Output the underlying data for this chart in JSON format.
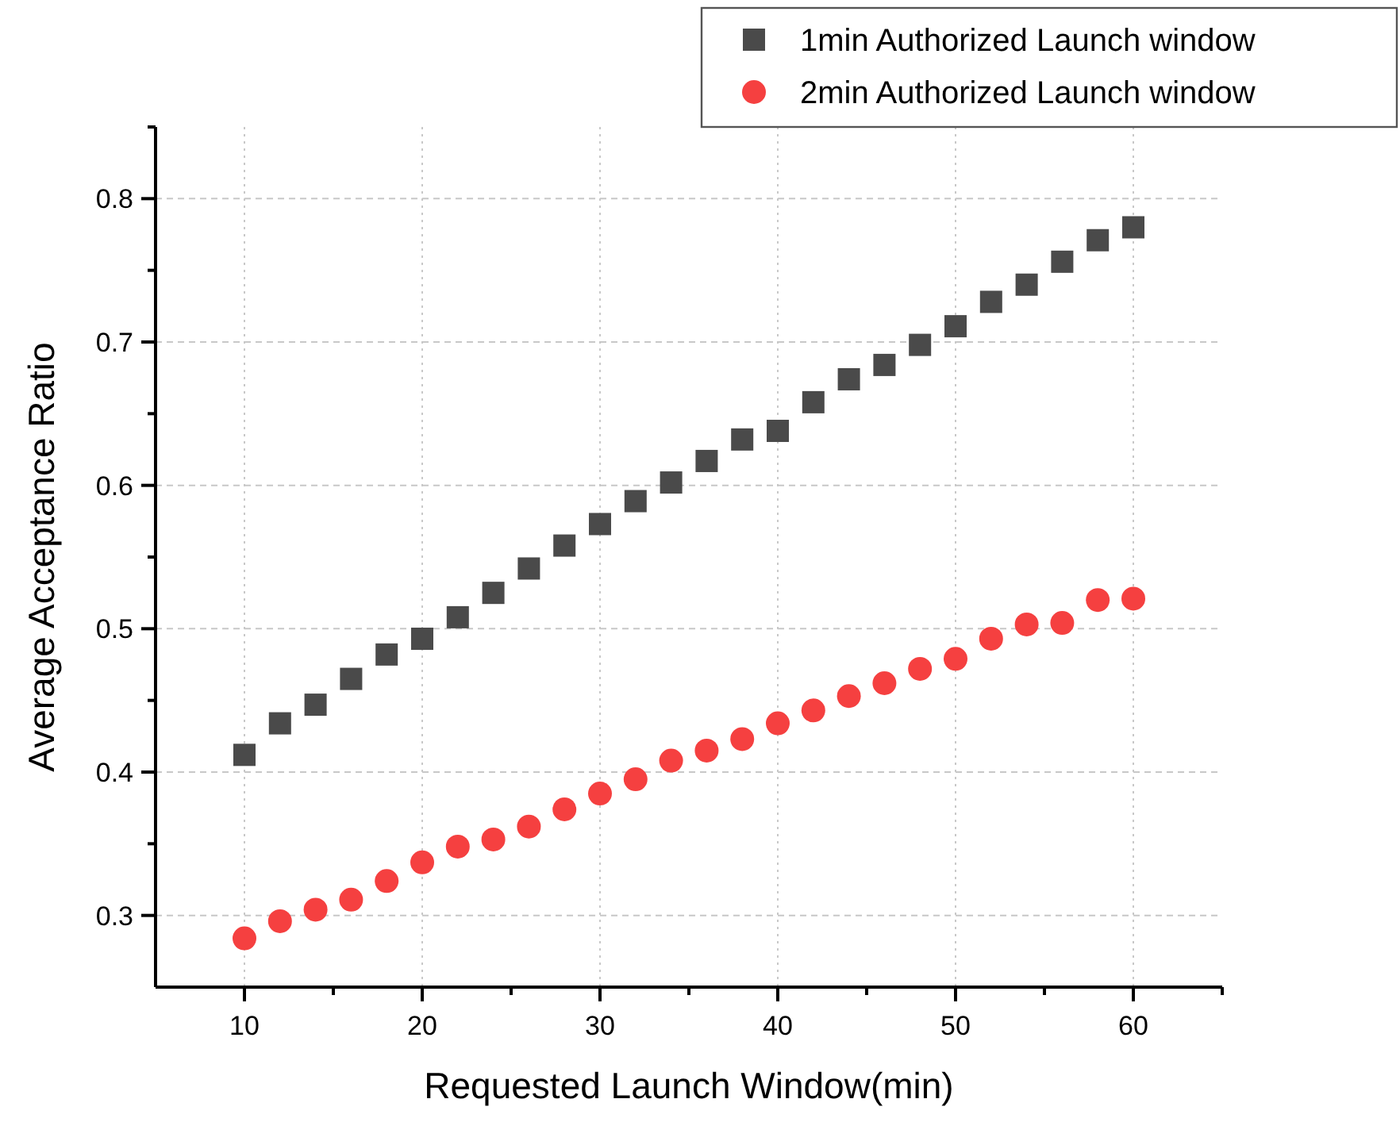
{
  "chart_data": {
    "type": "scatter",
    "xlabel": "Requested Launch Window(min)",
    "ylabel": "Average Acceptance Ratio",
    "x": [
      10,
      12,
      14,
      16,
      18,
      20,
      22,
      24,
      26,
      28,
      30,
      32,
      34,
      36,
      38,
      40,
      42,
      44,
      46,
      48,
      50,
      52,
      54,
      56,
      58,
      60
    ],
    "series": [
      {
        "name": "1min Authorized Launch window",
        "color": "#4a4a4a",
        "marker": "square",
        "values": [
          0.412,
          0.434,
          0.447,
          0.465,
          0.482,
          0.493,
          0.508,
          0.525,
          0.542,
          0.558,
          0.573,
          0.589,
          0.602,
          0.617,
          0.632,
          0.638,
          0.658,
          0.674,
          0.684,
          0.698,
          0.711,
          0.728,
          0.74,
          0.756,
          0.771,
          0.78
        ]
      },
      {
        "name": "2min Authorized Launch window",
        "color": "#f54040",
        "marker": "circle",
        "values": [
          0.284,
          0.296,
          0.304,
          0.311,
          0.324,
          0.337,
          0.348,
          0.353,
          0.362,
          0.374,
          0.385,
          0.395,
          0.408,
          0.415,
          0.423,
          0.434,
          0.443,
          0.453,
          0.462,
          0.472,
          0.479,
          0.493,
          0.503,
          0.504,
          0.52,
          0.521
        ]
      }
    ],
    "xlim": [
      5,
      65
    ],
    "xticks": [
      10,
      {
        "value": 15,
        "label": null
      },
      20,
      {
        "value": 25,
        "label": null
      },
      30,
      {
        "value": 35,
        "label": null
      },
      40,
      {
        "value": 45,
        "label": null
      },
      50,
      {
        "value": 55,
        "label": null
      },
      60,
      {
        "value": 65,
        "label": null
      }
    ],
    "ylim": [
      0.25,
      0.85
    ],
    "yticks": [
      0.3,
      {
        "value": 0.35,
        "label": null
      },
      0.4,
      {
        "value": 0.45,
        "label": null
      },
      0.5,
      {
        "value": 0.55,
        "label": null
      },
      0.6,
      {
        "value": 0.65,
        "label": null
      },
      0.7,
      {
        "value": 0.75,
        "label": null
      },
      0.8,
      {
        "value": 0.85,
        "label": null
      }
    ],
    "grid": true,
    "legend": "top right"
  }
}
